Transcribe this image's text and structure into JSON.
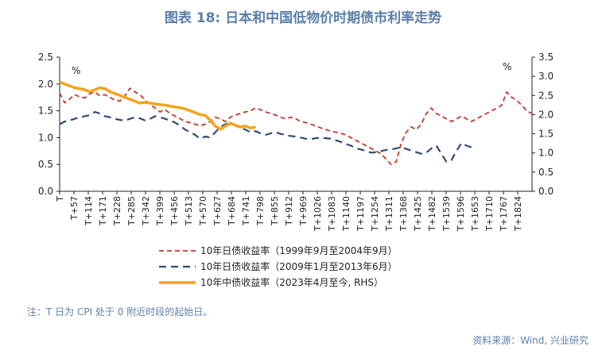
{
  "header": {
    "title": "图表 18: 日本和中国低物价时期债市利率走势"
  },
  "footer": {
    "note": "注：T 日为 CPI 处于 0 附近时段的起始日。",
    "source": "资料来源：Wind, 兴业研究"
  },
  "chart_data": {
    "type": "line",
    "title": "图表 18: 日本和中国低物价时期债市利率走势",
    "xlabel": "",
    "ylabel": "%",
    "y2label": "%",
    "ylim": [
      0.0,
      2.5
    ],
    "y2lim": [
      0.0,
      3.5
    ],
    "yticks": [
      "0.0",
      "0.5",
      "1.0",
      "1.5",
      "2.0",
      "2.5"
    ],
    "y2ticks": [
      "0.0",
      "0.5",
      "1.0",
      "1.5",
      "2.0",
      "2.5",
      "3.0",
      "3.5"
    ],
    "x_range": [
      0,
      1881
    ],
    "x_ticks": [
      "T",
      "T+57",
      "T+114",
      "T+171",
      "T+228",
      "T+285",
      "T+342",
      "T+399",
      "T+456",
      "T+513",
      "T+570",
      "T+627",
      "T+684",
      "T+741",
      "T+798",
      "T+855",
      "T+912",
      "T+969",
      "T+1026",
      "T+1083",
      "T+1140",
      "T+1197",
      "T+1254",
      "T+1311",
      "T+1368",
      "T+1425",
      "T+1482",
      "T+1539",
      "T+1596",
      "T+1653",
      "T+1710",
      "T+1767",
      "T+1824"
    ],
    "grid": false,
    "legend_position": "bottom",
    "series": [
      {
        "name": "10年日债收益率（1999年9月至2004年9月）",
        "axis": "left",
        "color": "#c0392b",
        "dash": "dashed",
        "x": [
          0,
          20,
          40,
          60,
          80,
          100,
          120,
          140,
          160,
          180,
          200,
          220,
          240,
          260,
          280,
          300,
          320,
          340,
          360,
          380,
          400,
          420,
          440,
          460,
          480,
          500,
          520,
          540,
          560,
          580,
          600,
          620,
          640,
          660,
          680,
          700,
          720,
          740,
          760,
          780,
          800,
          820,
          840,
          860,
          880,
          900,
          920,
          940,
          960,
          980,
          1000,
          1020,
          1040,
          1060,
          1080,
          1100,
          1120,
          1140,
          1160,
          1180,
          1200,
          1220,
          1240,
          1260,
          1280,
          1300,
          1320,
          1340,
          1360,
          1380,
          1400,
          1420,
          1440,
          1460,
          1480,
          1500,
          1520,
          1540,
          1560,
          1580,
          1600,
          1620,
          1640,
          1660,
          1680,
          1700,
          1720,
          1740,
          1760,
          1780,
          1800,
          1820,
          1840,
          1860,
          1880
        ],
        "values": [
          1.83,
          1.65,
          1.72,
          1.8,
          1.76,
          1.74,
          1.82,
          1.85,
          1.78,
          1.8,
          1.75,
          1.7,
          1.68,
          1.78,
          1.92,
          1.85,
          1.8,
          1.7,
          1.62,
          1.55,
          1.48,
          1.52,
          1.45,
          1.4,
          1.35,
          1.3,
          1.28,
          1.25,
          1.22,
          1.25,
          1.3,
          1.38,
          1.35,
          1.3,
          1.38,
          1.42,
          1.45,
          1.48,
          1.5,
          1.55,
          1.52,
          1.48,
          1.45,
          1.42,
          1.38,
          1.35,
          1.38,
          1.35,
          1.3,
          1.28,
          1.25,
          1.22,
          1.18,
          1.15,
          1.12,
          1.1,
          1.08,
          1.05,
          1.0,
          0.95,
          0.9,
          0.85,
          0.8,
          0.75,
          0.7,
          0.6,
          0.5,
          0.55,
          0.9,
          1.1,
          1.2,
          1.15,
          1.25,
          1.45,
          1.55,
          1.45,
          1.4,
          1.35,
          1.3,
          1.35,
          1.4,
          1.35,
          1.3,
          1.35,
          1.4,
          1.45,
          1.5,
          1.55,
          1.6,
          1.85,
          1.75,
          1.7,
          1.6,
          1.5,
          1.45
        ]
      },
      {
        "name": "10年日债收益率（2009年1月至2013年6月）",
        "axis": "left",
        "color": "#2f4b73",
        "dash": "longdash",
        "x": [
          0,
          20,
          40,
          60,
          80,
          100,
          120,
          140,
          160,
          180,
          200,
          220,
          240,
          260,
          280,
          300,
          320,
          340,
          360,
          380,
          400,
          420,
          440,
          460,
          480,
          500,
          520,
          540,
          560,
          580,
          600,
          620,
          640,
          660,
          680,
          700,
          720,
          740,
          760,
          780,
          800,
          820,
          840,
          860,
          880,
          900,
          920,
          940,
          960,
          980,
          1000,
          1020,
          1040,
          1060,
          1080,
          1100,
          1120,
          1140,
          1160,
          1180,
          1200,
          1220,
          1240,
          1260,
          1280,
          1300,
          1320,
          1340,
          1360,
          1380,
          1400,
          1420,
          1440,
          1460,
          1480,
          1500,
          1520,
          1540,
          1560,
          1580,
          1600,
          1620,
          1640
        ],
        "values": [
          1.25,
          1.3,
          1.32,
          1.35,
          1.38,
          1.4,
          1.42,
          1.48,
          1.45,
          1.4,
          1.38,
          1.35,
          1.33,
          1.32,
          1.35,
          1.38,
          1.36,
          1.32,
          1.35,
          1.4,
          1.38,
          1.35,
          1.32,
          1.28,
          1.22,
          1.15,
          1.1,
          1.05,
          0.98,
          1.02,
          1.0,
          1.1,
          1.2,
          1.25,
          1.28,
          1.22,
          1.18,
          1.15,
          1.1,
          1.12,
          1.08,
          1.05,
          1.08,
          1.1,
          1.07,
          1.05,
          1.03,
          1.02,
          1.0,
          0.98,
          0.97,
          0.99,
          1.0,
          0.99,
          0.98,
          0.95,
          0.92,
          0.88,
          0.85,
          0.8,
          0.78,
          0.75,
          0.72,
          0.73,
          0.75,
          0.77,
          0.78,
          0.8,
          0.82,
          0.79,
          0.76,
          0.73,
          0.7,
          0.72,
          0.8,
          0.85,
          0.7,
          0.55,
          0.58,
          0.75,
          0.9,
          0.85,
          0.82
        ]
      },
      {
        "name": "10年中债收益率（2023年4月至今, RHS）",
        "axis": "right",
        "color": "#f5a31a",
        "dash": "solid",
        "x": [
          0,
          20,
          40,
          60,
          80,
          100,
          120,
          140,
          160,
          180,
          200,
          220,
          240,
          260,
          280,
          300,
          320,
          340,
          360,
          380,
          400,
          420,
          440,
          460,
          480,
          500,
          520,
          540,
          560,
          580,
          600,
          620,
          640,
          660,
          680,
          700,
          720,
          740,
          760,
          780
        ],
        "values": [
          2.85,
          2.8,
          2.75,
          2.7,
          2.68,
          2.65,
          2.6,
          2.65,
          2.7,
          2.68,
          2.6,
          2.55,
          2.5,
          2.45,
          2.4,
          2.35,
          2.3,
          2.32,
          2.3,
          2.28,
          2.26,
          2.25,
          2.22,
          2.2,
          2.18,
          2.15,
          2.1,
          2.05,
          2.0,
          1.98,
          1.85,
          1.7,
          1.62,
          1.7,
          1.78,
          1.72,
          1.68,
          1.7,
          1.65,
          1.68
        ]
      }
    ]
  }
}
